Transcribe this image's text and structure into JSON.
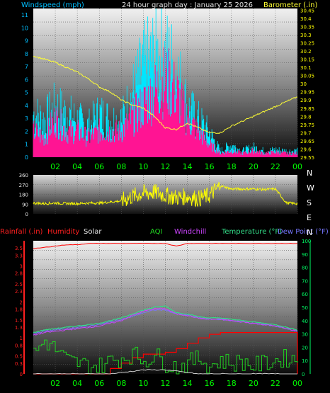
{
  "header": {
    "windspeed_label": "Windspeed (mph)",
    "title": "24 hour graph day : January 25 2026",
    "barometer_label": "Barometer (.in)"
  },
  "legend": {
    "rainfall": "Rainfall (.in)",
    "humidity": "Humidity",
    "solar": "Solar",
    "aqi": "AQI",
    "windchill": "Windchill",
    "temperature": "Temperature (°F)",
    "dewpoint": "Dew Point (°F)"
  },
  "colors": {
    "wind_speed": "#00e6ff",
    "wind_gust": "#ff1493",
    "barometer": "#ffff33",
    "direction": "#ffff00",
    "temperature": "#33dd88",
    "dewpoint": "#7777ff",
    "windchill": "#cc44ff",
    "humidity": "#ff0000",
    "rainfall": "#ff0000",
    "solar": "#cccccc",
    "aqi": "#22cc22",
    "hours": "#00ff00",
    "left_axis_top": "#00bfff",
    "right_axis_top": "#ffff00",
    "left_axis_bottom": "#ff2020",
    "right_axis_bottom": "#00ff66"
  },
  "chart_data": [
    {
      "type": "line",
      "panel": "wind-barometer",
      "x": [
        0,
        1,
        2,
        3,
        4,
        5,
        6,
        7,
        8,
        9,
        10,
        11,
        12,
        13,
        14,
        15,
        16,
        17,
        18,
        19,
        20,
        21,
        22,
        23,
        24
      ],
      "xtick_labels": [
        "02",
        "04",
        "06",
        "08",
        "10",
        "12",
        "14",
        "16",
        "18",
        "20",
        "22",
        "00"
      ],
      "ylim_left": [
        0,
        11.5
      ],
      "yticks_left": [
        "0",
        "1",
        "2",
        "3",
        "4",
        "5",
        "6",
        "7",
        "8",
        "9",
        "10",
        "11"
      ],
      "ylim_right": [
        29.55,
        30.46
      ],
      "yticks_right": [
        "29.55",
        "29.6",
        "29.65",
        "29.7",
        "29.75",
        "29.8",
        "29.85",
        "29.9",
        "29.95",
        "30",
        "30.05",
        "30.1",
        "30.15",
        "30.2",
        "30.25",
        "30.3",
        "30.35",
        "30.4",
        "30.45"
      ],
      "series": [
        {
          "name": "Windspeed (mph)",
          "axis": "left",
          "values": [
            3.5,
            3.0,
            4.0,
            3.5,
            3.0,
            2.5,
            3.5,
            3.0,
            3.0,
            5.0,
            7.0,
            8.0,
            8.0,
            7.0,
            4.0,
            3.0,
            2.0,
            0.5,
            1.0,
            0.5,
            0.8,
            0.5,
            0.6,
            0.5,
            0.5
          ]
        },
        {
          "name": "Wind Gust (mph)",
          "axis": "left",
          "values": [
            2.0,
            1.5,
            3.0,
            2.0,
            2.0,
            1.5,
            2.0,
            2.0,
            2.0,
            3.0,
            4.0,
            5.0,
            6.0,
            5.0,
            3.0,
            2.0,
            1.0,
            0.3,
            0.5,
            0.3,
            0.5,
            0.3,
            0.4,
            0.3,
            0.3
          ]
        },
        {
          "name": "Barometer (.in)",
          "axis": "right",
          "values": [
            30.17,
            30.15,
            30.13,
            30.1,
            30.07,
            30.03,
            29.98,
            29.95,
            29.9,
            29.87,
            29.85,
            29.8,
            29.73,
            29.72,
            29.76,
            29.73,
            29.7,
            29.7,
            29.74,
            29.77,
            29.8,
            29.83,
            29.86,
            29.89,
            29.92
          ]
        }
      ]
    },
    {
      "type": "scatter",
      "panel": "wind-direction",
      "x": [
        0,
        1,
        2,
        3,
        4,
        5,
        6,
        7,
        8,
        9,
        10,
        11,
        12,
        13,
        14,
        15,
        16,
        17,
        18,
        19,
        20,
        21,
        22,
        23,
        24
      ],
      "ylim": [
        0,
        360
      ],
      "yticks_left": [
        "0",
        "90",
        "180",
        "270",
        "360"
      ],
      "yticks_right": [
        "N",
        "W",
        "S",
        "E",
        "N"
      ],
      "series": [
        {
          "name": "Wind direction",
          "values": [
            100,
            95,
            100,
            95,
            95,
            100,
            100,
            110,
            120,
            160,
            190,
            200,
            170,
            150,
            160,
            140,
            170,
            260,
            230,
            230,
            230,
            225,
            230,
            100,
            95
          ]
        }
      ]
    },
    {
      "type": "line",
      "panel": "temperature-humidity-rain",
      "x": [
        0,
        1,
        2,
        3,
        4,
        5,
        6,
        7,
        8,
        9,
        10,
        11,
        12,
        13,
        14,
        15,
        16,
        17,
        18,
        19,
        20,
        21,
        22,
        23,
        24
      ],
      "xtick_labels": [
        "02",
        "04",
        "06",
        "08",
        "10",
        "12",
        "14",
        "16",
        "18",
        "20",
        "22",
        "00"
      ],
      "ylim_left": [
        0,
        3.7
      ],
      "yticks_left": [
        "0",
        "0.3",
        "0.5",
        "0.8",
        "1",
        "1.3",
        "1.5",
        "1.8",
        "2",
        "2.3",
        "2.5",
        "2.8",
        "3",
        "3.3",
        "3.5"
      ],
      "ylim_right": [
        0,
        100
      ],
      "yticks_right": [
        "0",
        "10",
        "20",
        "30",
        "40",
        "50",
        "60",
        "70",
        "80",
        "90",
        "100"
      ],
      "series": [
        {
          "name": "Temperature (°F)",
          "axis": "right",
          "values": [
            31,
            33,
            34,
            35,
            36,
            37,
            38,
            40,
            42,
            45,
            48,
            50,
            51,
            46,
            45,
            43,
            42,
            42,
            41,
            40,
            39,
            38,
            37,
            35,
            33
          ]
        },
        {
          "name": "Dew Point (°F)",
          "axis": "right",
          "values": [
            30,
            32,
            33,
            34,
            35,
            36,
            37,
            39,
            41,
            43,
            46,
            48,
            48,
            45,
            44,
            42,
            41,
            41,
            40,
            39,
            38,
            37,
            36,
            34,
            32
          ]
        },
        {
          "name": "Windchill",
          "axis": "right",
          "values": [
            29,
            31,
            32,
            33,
            34,
            35,
            36,
            38,
            40,
            44,
            47,
            49,
            49,
            45,
            44,
            42,
            41,
            41,
            40,
            39,
            38,
            37,
            36,
            34,
            32
          ]
        },
        {
          "name": "Humidity",
          "axis": "right",
          "values": [
            94,
            95,
            96,
            97,
            97,
            98,
            98,
            98,
            98,
            98,
            98,
            98,
            98,
            96,
            98,
            98,
            98,
            98,
            98,
            98,
            98,
            98,
            98,
            98,
            98
          ]
        },
        {
          "name": "Rainfall (.in)",
          "axis": "left",
          "values": [
            0,
            0,
            0,
            0,
            0,
            0,
            0,
            0.15,
            0.3,
            0.45,
            0.55,
            0.55,
            0.6,
            0.7,
            0.85,
            1.0,
            1.1,
            1.15,
            1.15,
            1.15,
            1.15,
            1.15,
            1.15,
            1.15,
            0
          ]
        },
        {
          "name": "AQI",
          "axis": "right",
          "values": [
            15,
            25,
            18,
            10,
            8,
            6,
            6,
            10,
            12,
            15,
            10,
            14,
            8,
            5,
            8,
            12,
            6,
            10,
            8,
            9,
            6,
            8,
            10,
            12,
            10
          ]
        },
        {
          "name": "Solar",
          "axis": "right",
          "values": [
            0,
            0,
            0,
            0,
            0,
            0,
            0,
            0,
            1,
            2,
            3,
            3,
            3,
            2,
            1,
            0,
            0,
            0,
            0,
            0,
            0,
            0,
            0,
            0,
            0
          ]
        }
      ]
    }
  ]
}
